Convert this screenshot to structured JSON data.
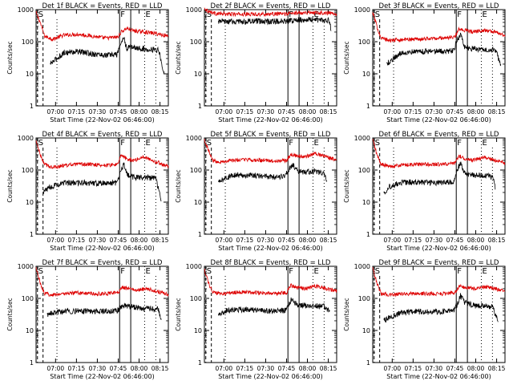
{
  "chart_data": {
    "type": "line",
    "ylabel": "Counts/sec",
    "xlabel": "Start Time (22-Nov-02 06:46:00)",
    "yscale": "log",
    "ylim": [
      1,
      1000
    ],
    "ytick_labels": [
      "1",
      "10",
      "100",
      "1000"
    ],
    "xlim_minutes_after_start": [
      0,
      95
    ],
    "xticks": [
      {
        "label": "07:00",
        "minutes": 14
      },
      {
        "label": "07:15",
        "minutes": 29
      },
      {
        "label": "07:30",
        "minutes": 44
      },
      {
        "label": "07:45",
        "minutes": 59
      },
      {
        "label": "08:00",
        "minutes": 74
      },
      {
        "label": "08:15",
        "minutes": 89
      }
    ],
    "marker_lines": [
      {
        "label": "S",
        "minutes": 1,
        "style": "dashed"
      },
      {
        "label": "F",
        "minutes": 60,
        "style": "solid"
      },
      {
        "label": "E",
        "minutes": 78,
        "style": "dotted"
      }
    ],
    "extra_lines": [
      {
        "minutes": 5,
        "style": "dashed"
      },
      {
        "minutes": 15,
        "style": "dotted"
      },
      {
        "minutes": 68,
        "style": "solid"
      },
      {
        "minutes": 86,
        "style": "dotted"
      }
    ],
    "colors": {
      "events": "#000000",
      "lld": "#dd0000"
    },
    "panels": [
      {
        "title": "Det 1f BLACK = Events, RED = LLD",
        "red": [
          [
            0,
            800
          ],
          [
            3,
            400
          ],
          [
            6,
            150
          ],
          [
            12,
            120
          ],
          [
            20,
            160
          ],
          [
            30,
            170
          ],
          [
            40,
            150
          ],
          [
            50,
            130
          ],
          [
            59,
            140
          ],
          [
            61,
            200
          ],
          [
            65,
            260
          ],
          [
            70,
            220
          ],
          [
            78,
            200
          ],
          [
            86,
            180
          ],
          [
            95,
            150
          ]
        ],
        "black": [
          [
            10,
            20
          ],
          [
            15,
            30
          ],
          [
            20,
            45
          ],
          [
            30,
            50
          ],
          [
            40,
            42
          ],
          [
            50,
            38
          ],
          [
            58,
            40
          ],
          [
            61,
            90
          ],
          [
            63,
            140
          ],
          [
            65,
            60
          ],
          [
            68,
            70
          ],
          [
            75,
            60
          ],
          [
            82,
            58
          ],
          [
            88,
            55
          ],
          [
            92,
            10
          ]
        ]
      },
      {
        "title": "Det 2f BLACK = Events, RED = LLD",
        "red": [
          [
            0,
            1100
          ],
          [
            3,
            900
          ],
          [
            8,
            750
          ],
          [
            20,
            720
          ],
          [
            40,
            720
          ],
          [
            59,
            740
          ],
          [
            65,
            780
          ],
          [
            75,
            820
          ],
          [
            85,
            800
          ],
          [
            95,
            760
          ]
        ],
        "black": [
          [
            10,
            420
          ],
          [
            20,
            420
          ],
          [
            40,
            430
          ],
          [
            59,
            430
          ],
          [
            65,
            470
          ],
          [
            75,
            500
          ],
          [
            85,
            470
          ],
          [
            90,
            460
          ],
          [
            91,
            200
          ]
        ]
      },
      {
        "title": "Det 3f BLACK = Events, RED = LLD",
        "red": [
          [
            0,
            800
          ],
          [
            3,
            300
          ],
          [
            6,
            130
          ],
          [
            12,
            110
          ],
          [
            20,
            115
          ],
          [
            30,
            120
          ],
          [
            40,
            125
          ],
          [
            50,
            130
          ],
          [
            59,
            140
          ],
          [
            62,
            250
          ],
          [
            66,
            230
          ],
          [
            72,
            200
          ],
          [
            80,
            230
          ],
          [
            88,
            200
          ],
          [
            95,
            160
          ]
        ],
        "black": [
          [
            10,
            20
          ],
          [
            15,
            30
          ],
          [
            20,
            45
          ],
          [
            30,
            50
          ],
          [
            40,
            50
          ],
          [
            50,
            50
          ],
          [
            58,
            52
          ],
          [
            61,
            120
          ],
          [
            63,
            160
          ],
          [
            66,
            70
          ],
          [
            70,
            60
          ],
          [
            80,
            60
          ],
          [
            88,
            55
          ],
          [
            92,
            20
          ]
        ]
      },
      {
        "title": "Det 4f BLACK = Events, RED = LLD",
        "red": [
          [
            0,
            800
          ],
          [
            3,
            300
          ],
          [
            6,
            150
          ],
          [
            12,
            120
          ],
          [
            20,
            140
          ],
          [
            30,
            150
          ],
          [
            40,
            150
          ],
          [
            50,
            140
          ],
          [
            59,
            150
          ],
          [
            61,
            300
          ],
          [
            65,
            220
          ],
          [
            70,
            200
          ],
          [
            78,
            260
          ],
          [
            86,
            180
          ],
          [
            95,
            130
          ]
        ],
        "black": [
          [
            5,
            20
          ],
          [
            10,
            30
          ],
          [
            20,
            40
          ],
          [
            30,
            40
          ],
          [
            40,
            40
          ],
          [
            50,
            38
          ],
          [
            58,
            40
          ],
          [
            61,
            100
          ],
          [
            63,
            150
          ],
          [
            66,
            70
          ],
          [
            70,
            60
          ],
          [
            80,
            58
          ],
          [
            86,
            55
          ],
          [
            90,
            10
          ]
        ]
      },
      {
        "title": "Det 5f BLACK = Events, RED = LLD",
        "red": [
          [
            0,
            900
          ],
          [
            3,
            400
          ],
          [
            6,
            200
          ],
          [
            12,
            180
          ],
          [
            20,
            200
          ],
          [
            30,
            210
          ],
          [
            40,
            200
          ],
          [
            50,
            190
          ],
          [
            59,
            200
          ],
          [
            62,
            310
          ],
          [
            66,
            280
          ],
          [
            72,
            260
          ],
          [
            80,
            320
          ],
          [
            88,
            250
          ],
          [
            95,
            200
          ]
        ],
        "black": [
          [
            10,
            40
          ],
          [
            15,
            55
          ],
          [
            20,
            70
          ],
          [
            30,
            70
          ],
          [
            40,
            65
          ],
          [
            50,
            60
          ],
          [
            58,
            65
          ],
          [
            61,
            110
          ],
          [
            64,
            140
          ],
          [
            67,
            90
          ],
          [
            72,
            85
          ],
          [
            80,
            90
          ],
          [
            86,
            80
          ],
          [
            88,
            40
          ]
        ]
      },
      {
        "title": "Det 6f BLACK = Events, RED = LLD",
        "red": [
          [
            0,
            900
          ],
          [
            3,
            300
          ],
          [
            6,
            150
          ],
          [
            12,
            130
          ],
          [
            20,
            140
          ],
          [
            30,
            150
          ],
          [
            40,
            150
          ],
          [
            50,
            150
          ],
          [
            59,
            160
          ],
          [
            62,
            280
          ],
          [
            66,
            230
          ],
          [
            72,
            200
          ],
          [
            80,
            250
          ],
          [
            88,
            200
          ],
          [
            95,
            170
          ]
        ],
        "black": [
          [
            8,
            20
          ],
          [
            12,
            30
          ],
          [
            20,
            40
          ],
          [
            30,
            42
          ],
          [
            40,
            40
          ],
          [
            50,
            40
          ],
          [
            58,
            42
          ],
          [
            61,
            110
          ],
          [
            63,
            160
          ],
          [
            66,
            80
          ],
          [
            72,
            70
          ],
          [
            80,
            68
          ],
          [
            86,
            60
          ],
          [
            88,
            30
          ]
        ]
      },
      {
        "title": "Det 7f BLACK = Events, RED = LLD",
        "red": [
          [
            0,
            900
          ],
          [
            3,
            300
          ],
          [
            6,
            140
          ],
          [
            12,
            130
          ],
          [
            20,
            140
          ],
          [
            30,
            150
          ],
          [
            40,
            140
          ],
          [
            50,
            140
          ],
          [
            59,
            150
          ],
          [
            62,
            220
          ],
          [
            66,
            200
          ],
          [
            72,
            180
          ],
          [
            80,
            200
          ],
          [
            88,
            160
          ],
          [
            95,
            130
          ]
        ],
        "black": [
          [
            8,
            30
          ],
          [
            12,
            35
          ],
          [
            20,
            40
          ],
          [
            30,
            40
          ],
          [
            40,
            40
          ],
          [
            50,
            40
          ],
          [
            58,
            40
          ],
          [
            61,
            55
          ],
          [
            64,
            60
          ],
          [
            68,
            55
          ],
          [
            75,
            50
          ],
          [
            82,
            48
          ],
          [
            88,
            45
          ],
          [
            90,
            20
          ]
        ]
      },
      {
        "title": "Det 8f BLACK = Events, RED = LLD",
        "red": [
          [
            0,
            800
          ],
          [
            3,
            300
          ],
          [
            6,
            150
          ],
          [
            12,
            140
          ],
          [
            20,
            150
          ],
          [
            30,
            160
          ],
          [
            40,
            150
          ],
          [
            50,
            140
          ],
          [
            59,
            150
          ],
          [
            62,
            260
          ],
          [
            66,
            220
          ],
          [
            72,
            200
          ],
          [
            80,
            240
          ],
          [
            88,
            200
          ],
          [
            95,
            170
          ]
        ],
        "black": [
          [
            10,
            30
          ],
          [
            15,
            40
          ],
          [
            20,
            45
          ],
          [
            30,
            45
          ],
          [
            40,
            42
          ],
          [
            50,
            40
          ],
          [
            58,
            42
          ],
          [
            61,
            70
          ],
          [
            63,
            100
          ],
          [
            66,
            65
          ],
          [
            72,
            60
          ],
          [
            80,
            58
          ],
          [
            86,
            55
          ],
          [
            90,
            40
          ]
        ]
      },
      {
        "title": "Det 9f BLACK = Events, RED = LLD",
        "red": [
          [
            0,
            900
          ],
          [
            3,
            300
          ],
          [
            6,
            140
          ],
          [
            12,
            130
          ],
          [
            20,
            135
          ],
          [
            30,
            140
          ],
          [
            40,
            140
          ],
          [
            50,
            140
          ],
          [
            59,
            150
          ],
          [
            62,
            240
          ],
          [
            66,
            220
          ],
          [
            72,
            200
          ],
          [
            80,
            230
          ],
          [
            88,
            200
          ],
          [
            95,
            160
          ]
        ],
        "black": [
          [
            8,
            20
          ],
          [
            12,
            25
          ],
          [
            20,
            35
          ],
          [
            30,
            38
          ],
          [
            40,
            38
          ],
          [
            50,
            38
          ],
          [
            58,
            40
          ],
          [
            61,
            70
          ],
          [
            63,
            120
          ],
          [
            66,
            75
          ],
          [
            72,
            60
          ],
          [
            80,
            58
          ],
          [
            86,
            55
          ],
          [
            90,
            20
          ]
        ]
      }
    ]
  }
}
